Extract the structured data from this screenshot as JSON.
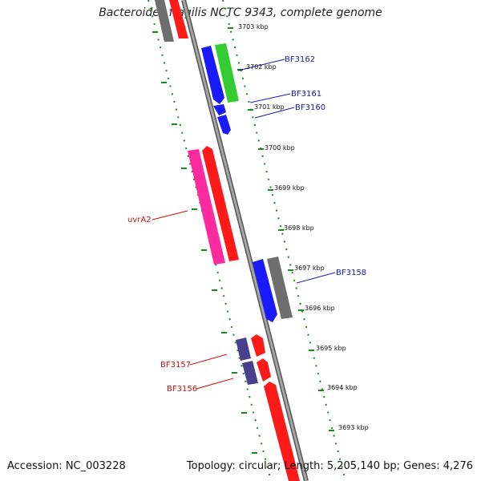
{
  "title": "Bacteroides fragilis NCTC 9343, complete genome",
  "footer": {
    "accession": "Accession: NC_003228",
    "summary": "Topology: circular; Length: 5,205,140 bp; Genes: 4,276"
  },
  "ticks": [
    {
      "label": "3703 kbp"
    },
    {
      "label": "3702 kbp"
    },
    {
      "label": "3701 kbp"
    },
    {
      "label": "3700 kbp"
    },
    {
      "label": "3699 kbp"
    },
    {
      "label": "3698 kbp"
    },
    {
      "label": "3697 kbp"
    },
    {
      "label": "3696 kbp"
    },
    {
      "label": "3695 kbp"
    },
    {
      "label": "3694 kbp"
    },
    {
      "label": "3693 kbp"
    }
  ],
  "gene_labels": [
    {
      "text": "BF3162",
      "color": "#1a1aa8"
    },
    {
      "text": "BF3161",
      "color": "#1a1aa8"
    },
    {
      "text": "BF3160",
      "color": "#1a1aa8"
    },
    {
      "text": "uvrA2",
      "color": "#cc1111"
    },
    {
      "text": "BF3158",
      "color": "#1a1aa8"
    },
    {
      "text": "BF3157",
      "color": "#cc1111"
    },
    {
      "text": "BF3156",
      "color": "#cc1111"
    }
  ],
  "colors": {
    "forward_strand": "#ff1a1a",
    "reverse_blue": "#1a1aff",
    "green": "#33cc33",
    "pink": "#ff2aa0",
    "gray": "#6e6e6e",
    "purple": "#4a3f8f",
    "tick_dash": "#1a8a1a",
    "backbone": "#8a8a8a"
  }
}
